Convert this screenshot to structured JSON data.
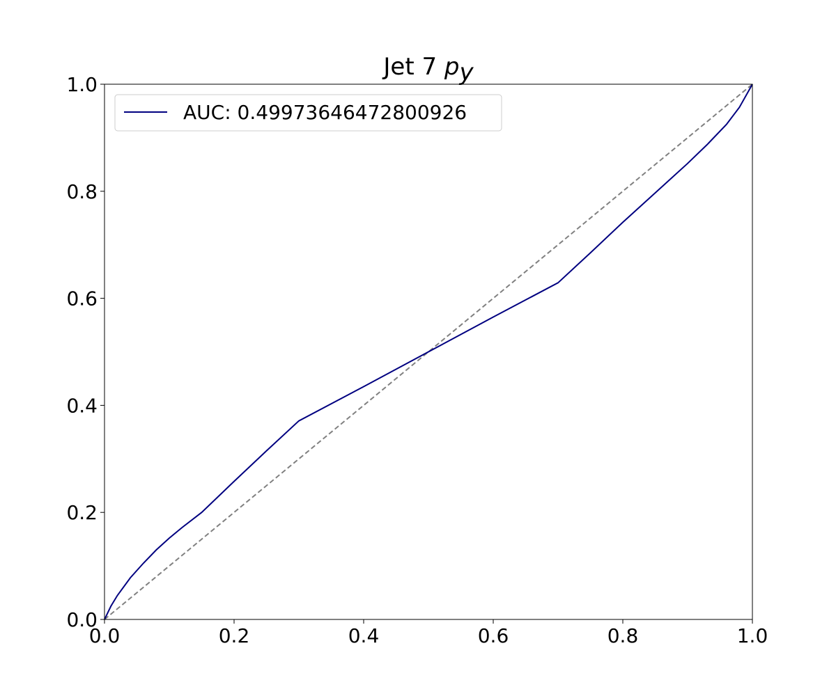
{
  "chart_data": {
    "type": "line",
    "title": {
      "prefix": "Jet 7 ",
      "symbol": "p",
      "subscript": "y"
    },
    "xlabel": "",
    "ylabel": "",
    "xlim": [
      0.0,
      1.0
    ],
    "ylim": [
      0.0,
      1.0
    ],
    "x_ticks": [
      "0.0",
      "0.2",
      "0.4",
      "0.6",
      "0.8",
      "1.0"
    ],
    "y_ticks": [
      "0.0",
      "0.2",
      "0.4",
      "0.6",
      "0.8",
      "1.0"
    ],
    "grid": false,
    "legend_position": "upper-left",
    "series": [
      {
        "name": "AUC: 0.49973646472800926",
        "color": "#000080",
        "style": "solid",
        "x": [
          0.0,
          0.01,
          0.02,
          0.04,
          0.06,
          0.08,
          0.1,
          0.12,
          0.15,
          0.2,
          0.25,
          0.3,
          0.4,
          0.5,
          0.6,
          0.7,
          0.75,
          0.8,
          0.85,
          0.9,
          0.93,
          0.96,
          0.98,
          1.0
        ],
        "y": [
          0.0,
          0.025,
          0.045,
          0.078,
          0.105,
          0.13,
          0.152,
          0.172,
          0.2,
          0.258,
          0.315,
          0.371,
          0.435,
          0.5,
          0.565,
          0.629,
          0.685,
          0.742,
          0.797,
          0.852,
          0.887,
          0.925,
          0.957,
          1.0
        ]
      },
      {
        "name": "",
        "color": "#808080",
        "style": "dashed",
        "x": [
          0.0,
          1.0
        ],
        "y": [
          0.0,
          1.0
        ]
      }
    ]
  }
}
